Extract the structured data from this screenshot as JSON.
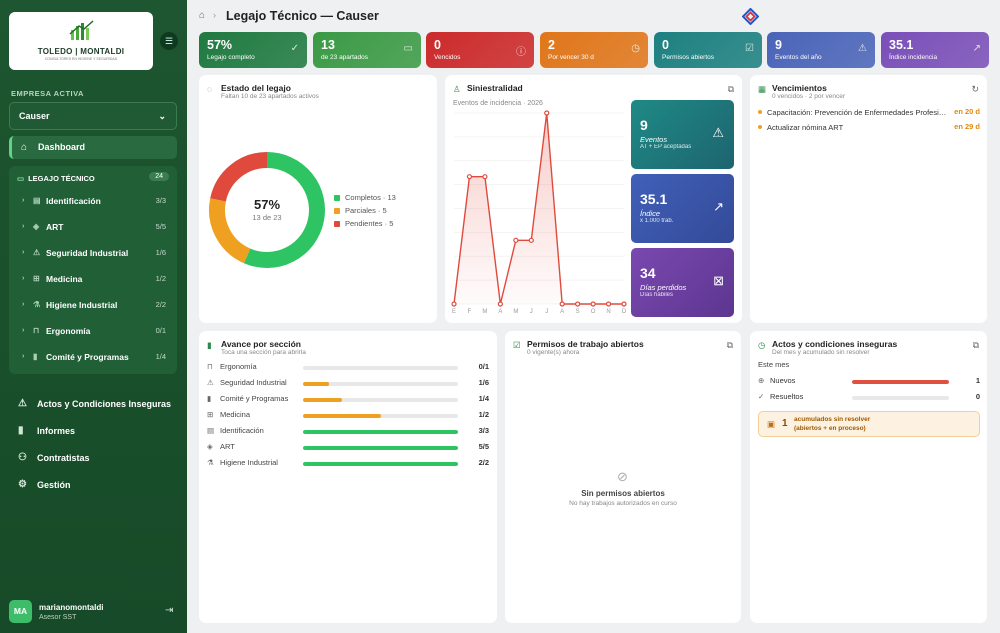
{
  "sidebar": {
    "logo": {
      "title": "TOLEDO | MONTALDI",
      "subtitle": "CONSULTORES EN HIGIENE Y SEGURIDAD"
    },
    "company_label": "EMPRESA ACTIVA",
    "company_value": "Causer",
    "dashboard_label": "Dashboard",
    "legajo": {
      "title": "LEGAJO TÉCNICO",
      "count": "24",
      "items": [
        {
          "label": "Identificación",
          "count": "3/3",
          "icon": "id-card-icon"
        },
        {
          "label": "ART",
          "count": "5/5",
          "icon": "shield-icon"
        },
        {
          "label": "Seguridad Industrial",
          "count": "1/6",
          "icon": "warning-icon"
        },
        {
          "label": "Medicina",
          "count": "1/2",
          "icon": "medical-kit-icon"
        },
        {
          "label": "Higiene Industrial",
          "count": "2/2",
          "icon": "flask-icon"
        },
        {
          "label": "Ergonomía",
          "count": "0/1",
          "icon": "chair-icon"
        },
        {
          "label": "Comité y Programas",
          "count": "1/4",
          "icon": "bar-chart-icon"
        }
      ]
    },
    "nav": [
      {
        "label": "Actos y Condiciones Inseguras",
        "icon": "warning-icon"
      },
      {
        "label": "Informes",
        "icon": "bar-chart-icon"
      },
      {
        "label": "Contratistas",
        "icon": "users-icon"
      },
      {
        "label": "Gestión",
        "icon": "gear-icon"
      }
    ],
    "user": {
      "initials": "MA",
      "name": "marianomontaldi",
      "role": "Asesor SST"
    }
  },
  "header": {
    "title": "Legajo Técnico — Causer"
  },
  "kpis": [
    {
      "value": "57%",
      "label": "Legajo completo",
      "color": "#1f7a40"
    },
    {
      "value": "13",
      "label": "de 23 apartados",
      "color": "#3b9a45"
    },
    {
      "value": "0",
      "label": "Vencidos",
      "color": "#cc2a2a"
    },
    {
      "value": "2",
      "label": "Por vencer 30 d",
      "color": "#e0761a"
    },
    {
      "value": "0",
      "label": "Permisos abiertos",
      "color": "#1d8080"
    },
    {
      "value": "9",
      "label": "Eventos del año",
      "color": "#4a64b8"
    },
    {
      "value": "35.1",
      "label": "Índice incidencia",
      "color": "#7a4fb8"
    }
  ],
  "estado": {
    "title": "Estado del legajo",
    "subtitle": "Faltan 10 de 23 apartados activos",
    "center_value": "57%",
    "center_sub": "13 de 23",
    "segments": [
      {
        "label": "Completos · 13",
        "value": 13,
        "color": "#2ec463"
      },
      {
        "label": "Parciales · 5",
        "value": 5,
        "color": "#f0a020"
      },
      {
        "label": "Pendientes · 5",
        "value": 5,
        "color": "#e04a3c"
      }
    ]
  },
  "siniestralidad": {
    "title": "Siniestralidad",
    "chart_label": "Eventos de incidencia · 2026",
    "minis": [
      {
        "value": "9",
        "label": "Eventos",
        "sub": "AT + EP aceptadas",
        "color": "#1d7a7a"
      },
      {
        "value": "35.1",
        "label": "Índice",
        "sub": "x 1.000 trab.",
        "color": "#3c55a8"
      },
      {
        "value": "34",
        "label": "Días perdidos",
        "sub": "Días hábiles",
        "color": "#6a3fa0"
      }
    ]
  },
  "chart_data": {
    "type": "area",
    "title": "Eventos de incidencia · 2026",
    "categories": [
      "E",
      "F",
      "M",
      "A",
      "M",
      "J",
      "J",
      "A",
      "S",
      "O",
      "N",
      "D"
    ],
    "values": [
      0,
      2,
      2,
      0,
      1,
      1,
      3,
      0,
      0,
      0,
      0,
      0
    ],
    "ylim": [
      0,
      3
    ],
    "color": "#e04a3c"
  },
  "vencimientos": {
    "title": "Vencimientos",
    "subtitle": "0 vencidos · 2 por vencer",
    "items": [
      {
        "text": "Capacitación: Prevención de Enfermedades Profesionales",
        "days": "en 20 d"
      },
      {
        "text": "Actualizar nómina ART",
        "days": "en 29 d"
      }
    ]
  },
  "avance": {
    "title": "Avance por sección",
    "subtitle": "Toca una sección para abrirla",
    "rows": [
      {
        "label": "Ergonomía",
        "count": "0/1",
        "pct": 0,
        "color": "#f0a020",
        "icon": "chair-icon"
      },
      {
        "label": "Seguridad Industrial",
        "count": "1/6",
        "pct": 0.17,
        "color": "#f0a020",
        "icon": "warning-icon"
      },
      {
        "label": "Comité y Programas",
        "count": "1/4",
        "pct": 0.25,
        "color": "#f0a020",
        "icon": "bar-chart-icon"
      },
      {
        "label": "Medicina",
        "count": "1/2",
        "pct": 0.5,
        "color": "#f0a020",
        "icon": "medical-kit-icon"
      },
      {
        "label": "Identificación",
        "count": "3/3",
        "pct": 1,
        "color": "#2ec463",
        "icon": "id-card-icon"
      },
      {
        "label": "ART",
        "count": "5/5",
        "pct": 1,
        "color": "#2ec463",
        "icon": "shield-icon"
      },
      {
        "label": "Higiene Industrial",
        "count": "2/2",
        "pct": 1,
        "color": "#2ec463",
        "icon": "flask-icon"
      }
    ]
  },
  "permisos": {
    "title": "Permisos de trabajo abiertos",
    "subtitle": "0 vigente(s) ahora",
    "empty_title": "Sin permisos abiertos",
    "empty_sub": "No hay trabajos autorizados en curso"
  },
  "actos": {
    "title": "Actos y condiciones inseguras",
    "subtitle": "Del mes y acumulado sin resolver",
    "section_label": "Este mes",
    "rows": [
      {
        "label": "Nuevos",
        "count": "1",
        "pct": 1
      },
      {
        "label": "Resueltos",
        "count": "0",
        "pct": 0
      }
    ],
    "alert_count": "1",
    "alert_line1": "acumulados sin resolver",
    "alert_line2": "(abiertos + en proceso)"
  }
}
